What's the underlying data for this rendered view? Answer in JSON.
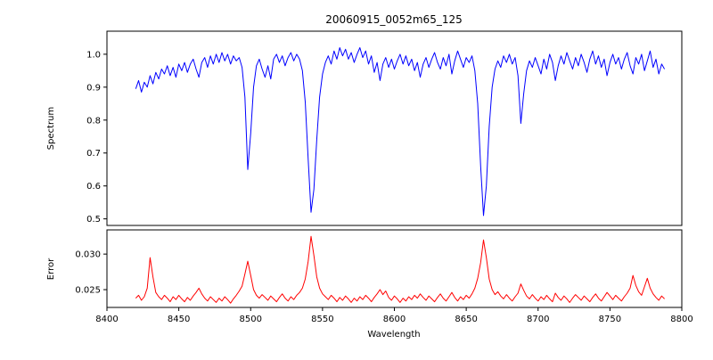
{
  "chart_data": {
    "type": "line",
    "title": "20060915_0052m65_125",
    "xlabel": "Wavelength",
    "xlim": [
      8400,
      8800
    ],
    "xticks": [
      8400,
      8450,
      8500,
      8550,
      8600,
      8650,
      8700,
      8750,
      8800
    ],
    "xtick_labels": [
      "8400",
      "8450",
      "8500",
      "8550",
      "8600",
      "8650",
      "8700",
      "8750",
      "8800"
    ],
    "x": [
      8420,
      8422,
      8424,
      8426,
      8428,
      8430,
      8432,
      8434,
      8436,
      8438,
      8440,
      8442,
      8444,
      8446,
      8448,
      8450,
      8452,
      8454,
      8456,
      8458,
      8460,
      8462,
      8464,
      8466,
      8468,
      8470,
      8472,
      8474,
      8476,
      8478,
      8480,
      8482,
      8484,
      8486,
      8488,
      8490,
      8492,
      8494,
      8496,
      8498,
      8500,
      8502,
      8504,
      8506,
      8508,
      8510,
      8512,
      8514,
      8516,
      8518,
      8520,
      8522,
      8524,
      8526,
      8528,
      8530,
      8532,
      8534,
      8536,
      8538,
      8540,
      8542,
      8544,
      8546,
      8548,
      8550,
      8552,
      8554,
      8556,
      8558,
      8560,
      8562,
      8564,
      8566,
      8568,
      8570,
      8572,
      8574,
      8576,
      8578,
      8580,
      8582,
      8584,
      8586,
      8588,
      8590,
      8592,
      8594,
      8596,
      8598,
      8600,
      8602,
      8604,
      8606,
      8608,
      8610,
      8612,
      8614,
      8616,
      8618,
      8620,
      8622,
      8624,
      8626,
      8628,
      8630,
      8632,
      8634,
      8636,
      8638,
      8640,
      8642,
      8644,
      8646,
      8648,
      8650,
      8652,
      8654,
      8656,
      8658,
      8660,
      8662,
      8664,
      8666,
      8668,
      8670,
      8672,
      8674,
      8676,
      8678,
      8680,
      8682,
      8684,
      8686,
      8688,
      8690,
      8692,
      8694,
      8696,
      8698,
      8700,
      8702,
      8704,
      8706,
      8708,
      8710,
      8712,
      8714,
      8716,
      8718,
      8720,
      8722,
      8724,
      8726,
      8728,
      8730,
      8732,
      8734,
      8736,
      8738,
      8740,
      8742,
      8744,
      8746,
      8748,
      8750,
      8752,
      8754,
      8756,
      8758,
      8760,
      8762,
      8764,
      8766,
      8768,
      8770,
      8772,
      8774,
      8776,
      8778,
      8780,
      8782,
      8784,
      8786,
      8788
    ],
    "subplots": [
      {
        "name": "spectrum",
        "ylabel": "Spectrum",
        "line_color": "#0000ff",
        "ylim": [
          0.48,
          1.07
        ],
        "yticks": [
          0.5,
          0.6,
          0.7,
          0.8,
          0.9,
          1.0
        ],
        "ytick_labels": [
          "0.5",
          "0.6",
          "0.7",
          "0.8",
          "0.9",
          "1.0"
        ],
        "absorption_lines": [
          8498,
          8542,
          8662,
          8688
        ],
        "values": [
          0.895,
          0.92,
          0.885,
          0.915,
          0.9,
          0.935,
          0.91,
          0.945,
          0.925,
          0.955,
          0.94,
          0.965,
          0.935,
          0.96,
          0.93,
          0.97,
          0.95,
          0.975,
          0.945,
          0.97,
          0.985,
          0.955,
          0.93,
          0.975,
          0.99,
          0.96,
          0.995,
          0.97,
          1.0,
          0.975,
          1.005,
          0.98,
          1.0,
          0.97,
          0.995,
          0.98,
          0.99,
          0.96,
          0.87,
          0.65,
          0.76,
          0.9,
          0.965,
          0.985,
          0.955,
          0.93,
          0.965,
          0.925,
          0.985,
          1.0,
          0.975,
          0.995,
          0.965,
          0.99,
          1.005,
          0.98,
          1.0,
          0.985,
          0.95,
          0.855,
          0.68,
          0.52,
          0.59,
          0.74,
          0.87,
          0.94,
          0.975,
          0.995,
          0.97,
          1.01,
          0.985,
          1.02,
          0.995,
          1.015,
          0.985,
          1.005,
          0.975,
          1.0,
          1.02,
          0.99,
          1.01,
          0.97,
          0.995,
          0.945,
          0.975,
          0.92,
          0.97,
          0.99,
          0.96,
          0.985,
          0.955,
          0.98,
          1.0,
          0.97,
          0.995,
          0.965,
          0.985,
          0.95,
          0.975,
          0.93,
          0.97,
          0.99,
          0.96,
          0.985,
          1.005,
          0.975,
          0.955,
          0.99,
          0.965,
          1.0,
          0.94,
          0.98,
          1.01,
          0.985,
          0.96,
          0.99,
          0.975,
          0.995,
          0.95,
          0.85,
          0.66,
          0.51,
          0.6,
          0.78,
          0.9,
          0.955,
          0.98,
          0.96,
          0.995,
          0.975,
          1.0,
          0.97,
          0.99,
          0.935,
          0.79,
          0.88,
          0.95,
          0.98,
          0.96,
          0.99,
          0.965,
          0.94,
          0.985,
          0.955,
          1.0,
          0.975,
          0.92,
          0.965,
          0.995,
          0.97,
          1.005,
          0.98,
          0.955,
          0.99,
          0.965,
          1.0,
          0.975,
          0.945,
          0.985,
          1.01,
          0.97,
          0.995,
          0.96,
          0.985,
          0.935,
          0.975,
          1.0,
          0.97,
          0.99,
          0.955,
          0.985,
          1.005,
          0.965,
          0.94,
          0.99,
          0.97,
          1.0,
          0.95,
          0.98,
          1.01,
          0.96,
          0.985,
          0.94,
          0.97,
          0.955
        ]
      },
      {
        "name": "error",
        "ylabel": "Error",
        "line_color": "#ff0000",
        "ylim": [
          0.0225,
          0.0334
        ],
        "yticks": [
          0.025,
          0.03
        ],
        "ytick_labels": [
          "0.025",
          "0.030"
        ],
        "values": [
          0.0238,
          0.0242,
          0.0235,
          0.024,
          0.0252,
          0.0295,
          0.0268,
          0.0246,
          0.024,
          0.0236,
          0.0242,
          0.0238,
          0.0233,
          0.024,
          0.0236,
          0.0242,
          0.0237,
          0.0233,
          0.0239,
          0.0235,
          0.0241,
          0.0246,
          0.0252,
          0.0244,
          0.0238,
          0.0234,
          0.024,
          0.0236,
          0.0232,
          0.0238,
          0.0234,
          0.024,
          0.0236,
          0.0231,
          0.0237,
          0.0242,
          0.0248,
          0.0255,
          0.0272,
          0.029,
          0.027,
          0.025,
          0.0242,
          0.0238,
          0.0243,
          0.0239,
          0.0235,
          0.0241,
          0.0237,
          0.0233,
          0.0239,
          0.0244,
          0.0238,
          0.0234,
          0.024,
          0.0236,
          0.0242,
          0.0246,
          0.0252,
          0.0265,
          0.029,
          0.0325,
          0.0298,
          0.0268,
          0.0252,
          0.0244,
          0.024,
          0.0236,
          0.0242,
          0.0238,
          0.0233,
          0.0239,
          0.0235,
          0.0241,
          0.0237,
          0.0232,
          0.0238,
          0.0234,
          0.024,
          0.0236,
          0.0242,
          0.0238,
          0.0233,
          0.0239,
          0.0244,
          0.025,
          0.0243,
          0.0248,
          0.0239,
          0.0235,
          0.0241,
          0.0237,
          0.0232,
          0.0238,
          0.0234,
          0.024,
          0.0236,
          0.0242,
          0.0238,
          0.0244,
          0.0239,
          0.0235,
          0.0241,
          0.0237,
          0.0233,
          0.0239,
          0.0244,
          0.0238,
          0.0234,
          0.024,
          0.0246,
          0.0239,
          0.0234,
          0.024,
          0.0236,
          0.0242,
          0.0238,
          0.0244,
          0.0252,
          0.0266,
          0.0288,
          0.032,
          0.0295,
          0.0265,
          0.025,
          0.0243,
          0.0247,
          0.0241,
          0.0237,
          0.0243,
          0.0238,
          0.0234,
          0.024,
          0.0245,
          0.0258,
          0.0249,
          0.0241,
          0.0237,
          0.0243,
          0.0238,
          0.0234,
          0.024,
          0.0236,
          0.0242,
          0.0237,
          0.0233,
          0.0245,
          0.0239,
          0.0235,
          0.0241,
          0.0237,
          0.0232,
          0.0238,
          0.0243,
          0.0239,
          0.0235,
          0.0241,
          0.0237,
          0.0233,
          0.0239,
          0.0244,
          0.0238,
          0.0234,
          0.024,
          0.0246,
          0.0241,
          0.0236,
          0.0242,
          0.0238,
          0.0234,
          0.024,
          0.0245,
          0.0252,
          0.027,
          0.0256,
          0.0247,
          0.0242,
          0.0254,
          0.0266,
          0.0252,
          0.0244,
          0.0239,
          0.0235,
          0.0241,
          0.0237
        ]
      }
    ]
  }
}
